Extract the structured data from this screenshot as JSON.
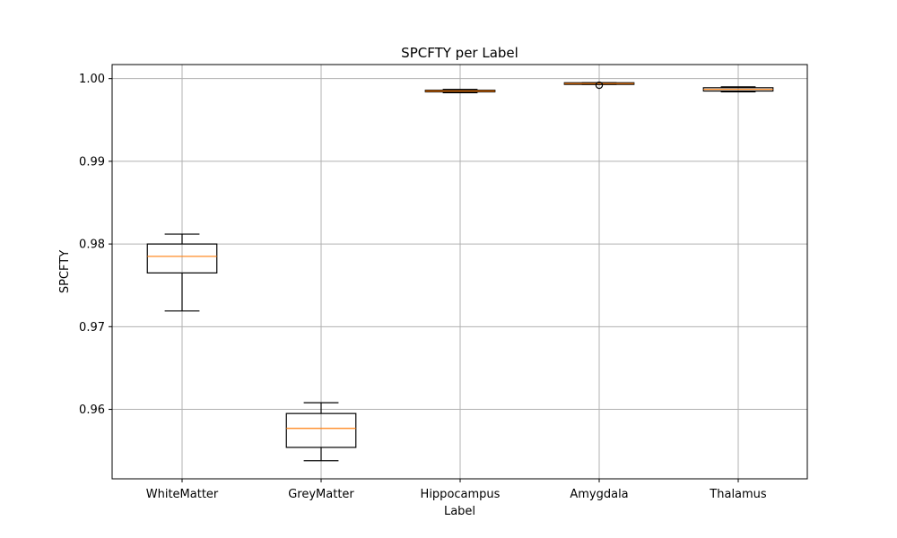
{
  "chart_data": {
    "type": "boxplot",
    "title": "SPCFTY per Label",
    "xlabel": "Label",
    "ylabel": "SPCFTY",
    "categories": [
      "WhiteMatter",
      "GreyMatter",
      "Hippocampus",
      "Amygdala",
      "Thalamus"
    ],
    "ylim": [
      0.9516,
      1.0017
    ],
    "yticks": [
      0.96,
      0.97,
      0.98,
      0.99,
      1.0
    ],
    "ytick_labels": [
      "0.96",
      "0.97",
      "0.98",
      "0.99",
      "1.00"
    ],
    "grid": true,
    "boxes": [
      {
        "label": "WhiteMatter",
        "whisker_low": 0.9719,
        "q1": 0.9765,
        "median": 0.9785,
        "q3": 0.98,
        "whisker_high": 0.9812,
        "outliers": []
      },
      {
        "label": "GreyMatter",
        "whisker_low": 0.9538,
        "q1": 0.9554,
        "median": 0.9577,
        "q3": 0.9595,
        "whisker_high": 0.9608,
        "outliers": []
      },
      {
        "label": "Hippocampus",
        "whisker_low": 0.9983,
        "q1": 0.9984,
        "median": 0.9985,
        "q3": 0.9986,
        "whisker_high": 0.9987,
        "outliers": []
      },
      {
        "label": "Amygdala",
        "whisker_low": 0.9993,
        "q1": 0.9993,
        "median": 0.9994,
        "q3": 0.9995,
        "whisker_high": 0.9995,
        "outliers": [
          0.9992
        ]
      },
      {
        "label": "Thalamus",
        "whisker_low": 0.9984,
        "q1": 0.9985,
        "median": 0.9987,
        "q3": 0.9989,
        "whisker_high": 0.999,
        "outliers": []
      }
    ],
    "colors": {
      "box": "#000000",
      "median": "#ff7f0e",
      "grid": "#b0b0b0"
    }
  }
}
